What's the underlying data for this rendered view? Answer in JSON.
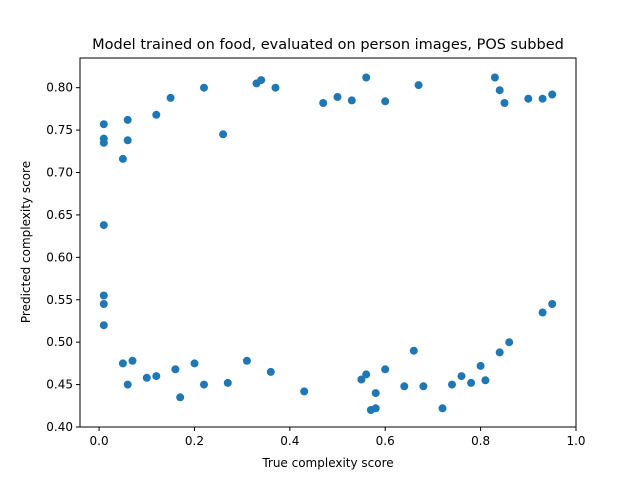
{
  "chart_data": {
    "type": "scatter",
    "title": "Model trained on food, evaluated on person images, POS subbed",
    "xlabel": "True complexity score",
    "ylabel": "Predicted complexity score",
    "xlim": [
      -0.04,
      1.0
    ],
    "ylim": [
      0.4,
      0.835
    ],
    "x_ticks": [
      0.0,
      0.2,
      0.4,
      0.6,
      0.8,
      1.0
    ],
    "x_tick_labels": [
      "0.0",
      "0.2",
      "0.4",
      "0.6",
      "0.8",
      "1.0"
    ],
    "y_ticks": [
      0.4,
      0.45,
      0.5,
      0.55,
      0.6,
      0.65,
      0.7,
      0.75,
      0.8
    ],
    "y_tick_labels": [
      "0.40",
      "0.45",
      "0.50",
      "0.55",
      "0.60",
      "0.65",
      "0.70",
      "0.75",
      "0.80"
    ],
    "grid": false,
    "marker_color": "#1f77b4",
    "points": [
      [
        0.01,
        0.757
      ],
      [
        0.01,
        0.74
      ],
      [
        0.01,
        0.735
      ],
      [
        0.01,
        0.638
      ],
      [
        0.01,
        0.555
      ],
      [
        0.01,
        0.545
      ],
      [
        0.01,
        0.52
      ],
      [
        0.06,
        0.762
      ],
      [
        0.06,
        0.738
      ],
      [
        0.05,
        0.716
      ],
      [
        0.06,
        0.45
      ],
      [
        0.05,
        0.475
      ],
      [
        0.07,
        0.478
      ],
      [
        0.1,
        0.458
      ],
      [
        0.12,
        0.46
      ],
      [
        0.17,
        0.435
      ],
      [
        0.16,
        0.468
      ],
      [
        0.2,
        0.475
      ],
      [
        0.22,
        0.45
      ],
      [
        0.22,
        0.8
      ],
      [
        0.15,
        0.788
      ],
      [
        0.12,
        0.768
      ],
      [
        0.26,
        0.745
      ],
      [
        0.27,
        0.452
      ],
      [
        0.31,
        0.478
      ],
      [
        0.33,
        0.805
      ],
      [
        0.34,
        0.809
      ],
      [
        0.37,
        0.8
      ],
      [
        0.36,
        0.465
      ],
      [
        0.43,
        0.442
      ],
      [
        0.47,
        0.782
      ],
      [
        0.5,
        0.789
      ],
      [
        0.53,
        0.785
      ],
      [
        0.55,
        0.456
      ],
      [
        0.56,
        0.812
      ],
      [
        0.57,
        0.42
      ],
      [
        0.58,
        0.422
      ],
      [
        0.58,
        0.44
      ],
      [
        0.56,
        0.462
      ],
      [
        0.6,
        0.784
      ],
      [
        0.6,
        0.468
      ],
      [
        0.64,
        0.448
      ],
      [
        0.66,
        0.49
      ],
      [
        0.67,
        0.803
      ],
      [
        0.68,
        0.448
      ],
      [
        0.72,
        0.422
      ],
      [
        0.74,
        0.45
      ],
      [
        0.76,
        0.46
      ],
      [
        0.78,
        0.452
      ],
      [
        0.8,
        0.472
      ],
      [
        0.81,
        0.455
      ],
      [
        0.84,
        0.488
      ],
      [
        0.86,
        0.5
      ],
      [
        0.83,
        0.812
      ],
      [
        0.84,
        0.797
      ],
      [
        0.85,
        0.782
      ],
      [
        0.9,
        0.787
      ],
      [
        0.93,
        0.787
      ],
      [
        0.95,
        0.792
      ],
      [
        0.95,
        0.545
      ],
      [
        0.93,
        0.535
      ]
    ]
  }
}
